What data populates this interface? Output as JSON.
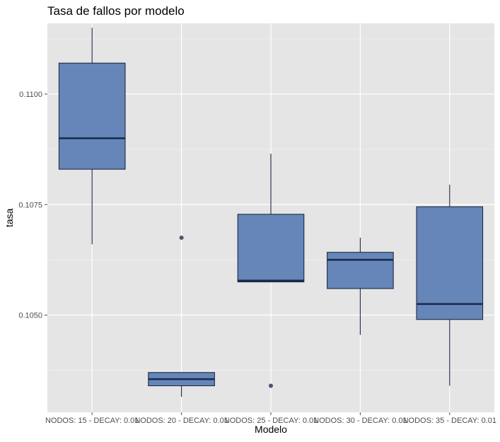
{
  "chart_data": {
    "type": "boxplot",
    "title": "Tasa de fallos por modelo",
    "xlabel": "Modelo",
    "ylabel": "tasa",
    "ylim": [
      0.1028,
      0.1116
    ],
    "yticks": [
      {
        "value": 0.105,
        "label": "0.1050"
      },
      {
        "value": 0.1075,
        "label": "0.1075"
      },
      {
        "value": 0.11,
        "label": "0.1100"
      }
    ],
    "grid": true,
    "categories": [
      "NODOS: 15 - DECAY: 0.01",
      "NODOS: 20 - DECAY: 0.01",
      "NODOS: 25 - DECAY: 0.01",
      "NODOS: 30 - DECAY: 0.01",
      "NODOS: 35 - DECAY: 0.01"
    ],
    "boxes": [
      {
        "whisker_low": 0.1066,
        "q1": 0.1083,
        "median": 0.109,
        "q3": 0.1107,
        "whisker_high": 0.1115,
        "outliers": []
      },
      {
        "whisker_low": 0.10315,
        "q1": 0.1034,
        "median": 0.10355,
        "q3": 0.1037,
        "whisker_high": 0.1037,
        "outliers": [
          0.10675
        ]
      },
      {
        "whisker_low": 0.10575,
        "q1": 0.10575,
        "median": 0.10578,
        "q3": 0.10728,
        "whisker_high": 0.10865,
        "outliers": [
          0.1034
        ]
      },
      {
        "whisker_low": 0.10455,
        "q1": 0.1056,
        "median": 0.10625,
        "q3": 0.10642,
        "whisker_high": 0.10675,
        "outliers": []
      },
      {
        "whisker_low": 0.1034,
        "q1": 0.1049,
        "median": 0.10525,
        "q3": 0.10745,
        "whisker_high": 0.10795,
        "outliers": []
      }
    ],
    "colors": {
      "panel": "#e5e5e5",
      "grid_major": "#ffffff",
      "box_fill": "#5b7db4",
      "box_stroke": "#1b2a44",
      "median": "#17294a",
      "outlier": "#4a5570",
      "tick": "#4d4d4d"
    }
  }
}
